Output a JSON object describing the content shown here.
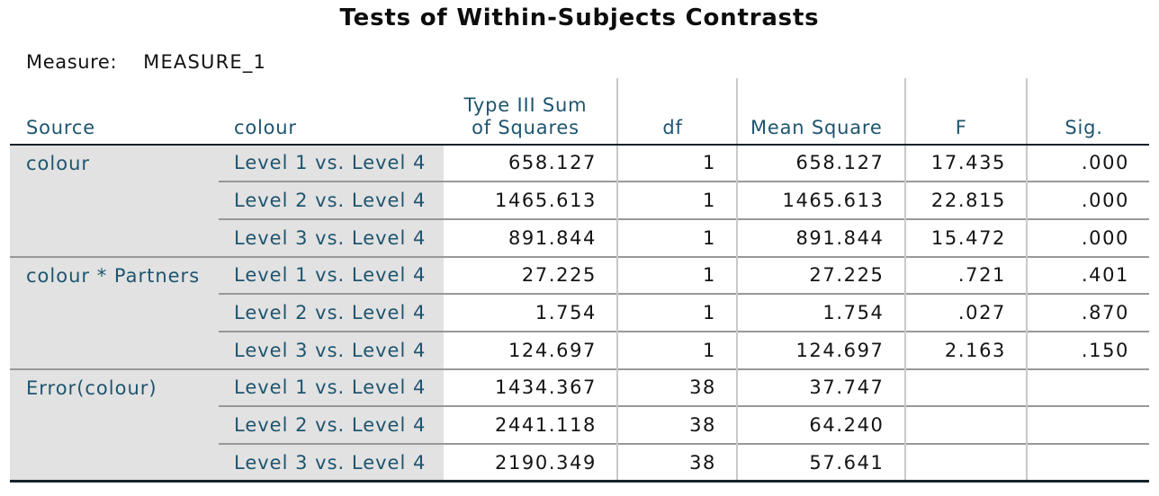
{
  "title": "Tests of Within-Subjects Contrasts",
  "measure": {
    "label": "Measure:",
    "value": "MEASURE_1"
  },
  "table": {
    "headers": {
      "source": "Source",
      "contrast": "colour",
      "ss_line1": "Type III Sum",
      "ss_line2": "of Squares",
      "df": "df",
      "ms": "Mean Square",
      "f": "F",
      "sig": "Sig."
    },
    "groups": [
      {
        "source": "colour",
        "rows": [
          {
            "contrast": "Level 1 vs. Level 4",
            "ss": "658.127",
            "df": "1",
            "ms": "658.127",
            "f": "17.435",
            "sig": ".000"
          },
          {
            "contrast": "Level 2 vs. Level 4",
            "ss": "1465.613",
            "df": "1",
            "ms": "1465.613",
            "f": "22.815",
            "sig": ".000"
          },
          {
            "contrast": "Level 3 vs. Level 4",
            "ss": "891.844",
            "df": "1",
            "ms": "891.844",
            "f": "15.472",
            "sig": ".000"
          }
        ]
      },
      {
        "source": "colour * Partners",
        "rows": [
          {
            "contrast": "Level 1 vs. Level 4",
            "ss": "27.225",
            "df": "1",
            "ms": "27.225",
            "f": ".721",
            "sig": ".401"
          },
          {
            "contrast": "Level 2 vs. Level 4",
            "ss": "1.754",
            "df": "1",
            "ms": "1.754",
            "f": ".027",
            "sig": ".870"
          },
          {
            "contrast": "Level 3 vs. Level 4",
            "ss": "124.697",
            "df": "1",
            "ms": "124.697",
            "f": "2.163",
            "sig": ".150"
          }
        ]
      },
      {
        "source": "Error(colour)",
        "rows": [
          {
            "contrast": "Level 1 vs. Level 4",
            "ss": "1434.367",
            "df": "38",
            "ms": "37.747",
            "f": "",
            "sig": ""
          },
          {
            "contrast": "Level 2 vs. Level 4",
            "ss": "2441.118",
            "df": "38",
            "ms": "64.240",
            "f": "",
            "sig": ""
          },
          {
            "contrast": "Level 3 vs. Level 4",
            "ss": "2190.349",
            "df": "38",
            "ms": "57.641",
            "f": "",
            "sig": ""
          }
        ]
      }
    ]
  },
  "colors": {
    "label_text": "#1e556f",
    "value_text": "#141414",
    "row_stub_background": "#e2e2e2",
    "heavy_rule": "#15222b",
    "light_rule": "#8f8f8f",
    "column_rule": "#c3c3c3"
  }
}
